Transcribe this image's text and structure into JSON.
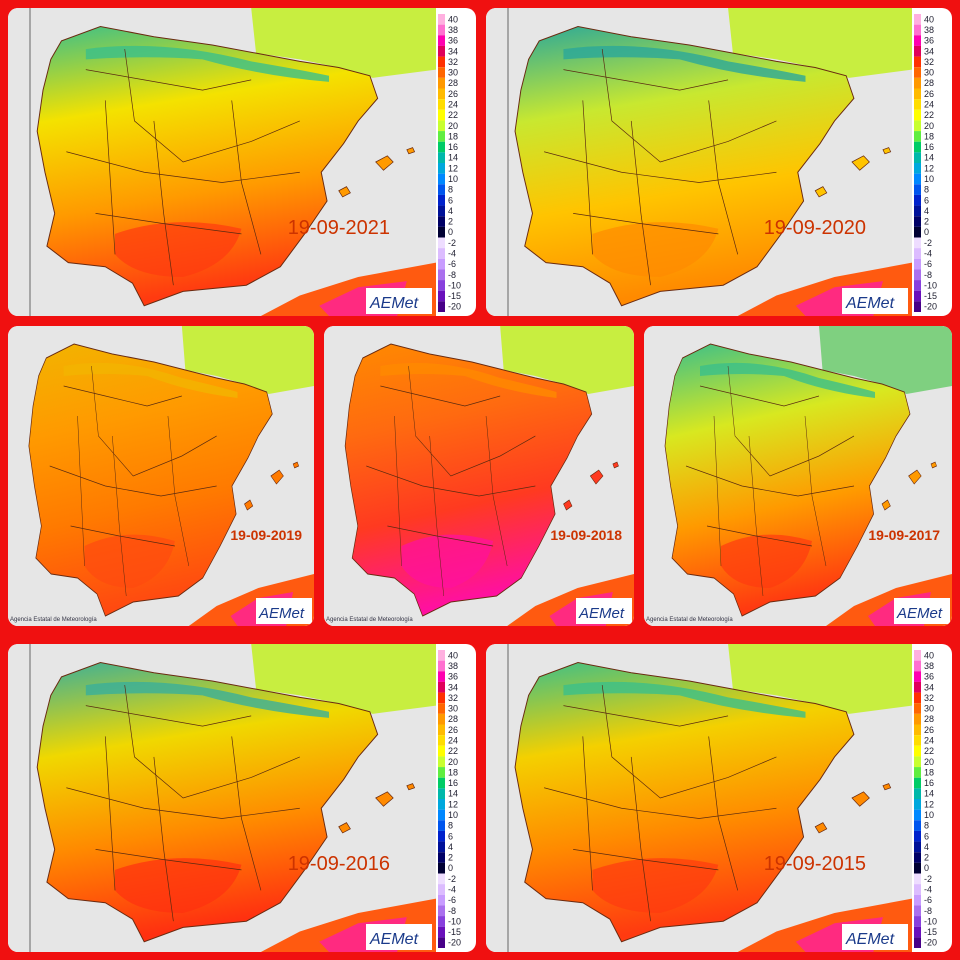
{
  "panels": [
    {
      "date": "19-09-2021"
    },
    {
      "date": "19-09-2020"
    },
    {
      "date": "19-09-2019"
    },
    {
      "date": "19-09-2018"
    },
    {
      "date": "19-09-2017"
    },
    {
      "date": "19-09-2016"
    },
    {
      "date": "19-09-2015"
    }
  ],
  "scale": {
    "labels": [
      "40",
      "38",
      "36",
      "34",
      "32",
      "30",
      "28",
      "26",
      "24",
      "22",
      "20",
      "18",
      "16",
      "14",
      "12",
      "10",
      "8",
      "6",
      "4",
      "2",
      "0",
      "-2",
      "-4",
      "-6",
      "-8",
      "-10",
      "-15",
      "-20"
    ]
  },
  "logo": "AEMet",
  "agency": "Agencia Estatal de Meteorología"
}
